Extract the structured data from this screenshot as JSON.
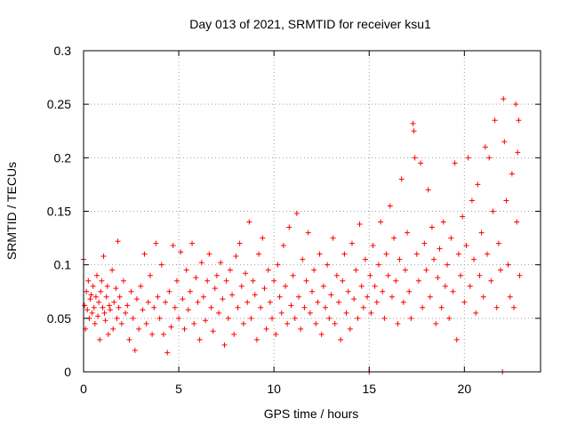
{
  "chart_data": {
    "type": "scatter",
    "title": "Day 013 of 2021, SRMTID for receiver ksu1",
    "xlabel": "GPS time / hours",
    "ylabel": "SRMTID / TECUs",
    "xlim": [
      0,
      24
    ],
    "ylim": [
      0,
      0.3
    ],
    "xticks": [
      0,
      5,
      10,
      15,
      20
    ],
    "xtick_labels": [
      "0",
      "5",
      "10",
      "15",
      "20"
    ],
    "yticks": [
      0,
      0.05,
      0.1,
      0.15,
      0.2,
      0.25,
      0.3
    ],
    "ytick_labels": [
      "0",
      "0.05",
      "0.1",
      "0.15",
      "0.2",
      "0.25",
      "0.3"
    ],
    "grid": true,
    "marker": "plus",
    "color": "#ff0000",
    "series": [
      {
        "name": "SRMTID",
        "points": [
          [
            0.0,
            0.105
          ],
          [
            0.05,
            0.062
          ],
          [
            0.1,
            0.04
          ],
          [
            0.15,
            0.075
          ],
          [
            0.2,
            0.058
          ],
          [
            0.25,
            0.085
          ],
          [
            0.3,
            0.05
          ],
          [
            0.35,
            0.068
          ],
          [
            0.4,
            0.072
          ],
          [
            0.45,
            0.055
          ],
          [
            0.5,
            0.08
          ],
          [
            0.55,
            0.06
          ],
          [
            0.6,
            0.045
          ],
          [
            0.65,
            0.07
          ],
          [
            0.7,
            0.09
          ],
          [
            0.75,
            0.052
          ],
          [
            0.8,
            0.065
          ],
          [
            0.85,
            0.03
          ],
          [
            0.9,
            0.075
          ],
          [
            0.95,
            0.085
          ],
          [
            1.0,
            0.06
          ],
          [
            1.05,
            0.108
          ],
          [
            1.1,
            0.055
          ],
          [
            1.15,
            0.048
          ],
          [
            1.2,
            0.07
          ],
          [
            1.25,
            0.08
          ],
          [
            1.3,
            0.035
          ],
          [
            1.35,
            0.062
          ],
          [
            1.4,
            0.058
          ],
          [
            1.5,
            0.095
          ],
          [
            1.55,
            0.04
          ],
          [
            1.6,
            0.065
          ],
          [
            1.7,
            0.078
          ],
          [
            1.75,
            0.05
          ],
          [
            1.8,
            0.122
          ],
          [
            1.85,
            0.06
          ],
          [
            1.9,
            0.07
          ],
          [
            2.0,
            0.045
          ],
          [
            2.1,
            0.085
          ],
          [
            2.2,
            0.055
          ],
          [
            2.3,
            0.062
          ],
          [
            2.4,
            0.03
          ],
          [
            2.5,
            0.075
          ],
          [
            2.6,
            0.05
          ],
          [
            2.7,
            0.02
          ],
          [
            2.8,
            0.068
          ],
          [
            2.9,
            0.04
          ],
          [
            3.0,
            0.08
          ],
          [
            3.1,
            0.058
          ],
          [
            3.2,
            0.11
          ],
          [
            3.3,
            0.045
          ],
          [
            3.4,
            0.065
          ],
          [
            3.5,
            0.09
          ],
          [
            3.6,
            0.035
          ],
          [
            3.7,
            0.06
          ],
          [
            3.8,
            0.12
          ],
          [
            3.9,
            0.07
          ],
          [
            4.0,
            0.05
          ],
          [
            4.1,
            0.1
          ],
          [
            4.2,
            0.035
          ],
          [
            4.3,
            0.065
          ],
          [
            4.4,
            0.018
          ],
          [
            4.5,
            0.075
          ],
          [
            4.6,
            0.042
          ],
          [
            4.7,
            0.118
          ],
          [
            4.8,
            0.06
          ],
          [
            4.9,
            0.085
          ],
          [
            5.0,
            0.05
          ],
          [
            5.1,
            0.112
          ],
          [
            5.2,
            0.068
          ],
          [
            5.3,
            0.04
          ],
          [
            5.4,
            0.095
          ],
          [
            5.5,
            0.058
          ],
          [
            5.6,
            0.075
          ],
          [
            5.7,
            0.12
          ],
          [
            5.8,
            0.045
          ],
          [
            5.9,
            0.088
          ],
          [
            6.0,
            0.065
          ],
          [
            6.1,
            0.03
          ],
          [
            6.2,
            0.102
          ],
          [
            6.3,
            0.07
          ],
          [
            6.4,
            0.048
          ],
          [
            6.5,
            0.085
          ],
          [
            6.6,
            0.11
          ],
          [
            6.7,
            0.06
          ],
          [
            6.8,
            0.038
          ],
          [
            6.9,
            0.078
          ],
          [
            7.0,
            0.09
          ],
          [
            7.1,
            0.055
          ],
          [
            7.2,
            0.102
          ],
          [
            7.3,
            0.068
          ],
          [
            7.4,
            0.025
          ],
          [
            7.5,
            0.085
          ],
          [
            7.6,
            0.05
          ],
          [
            7.7,
            0.095
          ],
          [
            7.8,
            0.072
          ],
          [
            7.9,
            0.035
          ],
          [
            8.0,
            0.108
          ],
          [
            8.1,
            0.06
          ],
          [
            8.2,
            0.12
          ],
          [
            8.3,
            0.08
          ],
          [
            8.4,
            0.045
          ],
          [
            8.5,
            0.092
          ],
          [
            8.6,
            0.065
          ],
          [
            8.7,
            0.14
          ],
          [
            8.8,
            0.05
          ],
          [
            8.9,
            0.085
          ],
          [
            9.0,
            0.072
          ],
          [
            9.1,
            0.03
          ],
          [
            9.2,
            0.11
          ],
          [
            9.3,
            0.06
          ],
          [
            9.4,
            0.125
          ],
          [
            9.5,
            0.078
          ],
          [
            9.6,
            0.04
          ],
          [
            9.7,
            0.095
          ],
          [
            9.8,
            0.065
          ],
          [
            9.9,
            0.05
          ],
          [
            10.0,
            0.085
          ],
          [
            10.1,
            0.035
          ],
          [
            10.2,
            0.1
          ],
          [
            10.3,
            0.07
          ],
          [
            10.4,
            0.055
          ],
          [
            10.5,
            0.118
          ],
          [
            10.6,
            0.08
          ],
          [
            10.7,
            0.045
          ],
          [
            10.8,
            0.135
          ],
          [
            10.9,
            0.062
          ],
          [
            11.0,
            0.09
          ],
          [
            11.1,
            0.05
          ],
          [
            11.2,
            0.148
          ],
          [
            11.3,
            0.07
          ],
          [
            11.4,
            0.04
          ],
          [
            11.5,
            0.105
          ],
          [
            11.6,
            0.06
          ],
          [
            11.7,
            0.085
          ],
          [
            11.8,
            0.13
          ],
          [
            11.9,
            0.055
          ],
          [
            12.0,
            0.075
          ],
          [
            12.1,
            0.095
          ],
          [
            12.2,
            0.045
          ],
          [
            12.3,
            0.065
          ],
          [
            12.4,
            0.11
          ],
          [
            12.5,
            0.035
          ],
          [
            12.6,
            0.08
          ],
          [
            12.7,
            0.06
          ],
          [
            12.8,
            0.1
          ],
          [
            12.9,
            0.05
          ],
          [
            13.0,
            0.072
          ],
          [
            13.1,
            0.125
          ],
          [
            13.2,
            0.045
          ],
          [
            13.3,
            0.09
          ],
          [
            13.4,
            0.065
          ],
          [
            13.5,
            0.03
          ],
          [
            13.6,
            0.085
          ],
          [
            13.7,
            0.11
          ],
          [
            13.8,
            0.055
          ],
          [
            13.9,
            0.075
          ],
          [
            14.0,
            0.04
          ],
          [
            14.1,
            0.12
          ],
          [
            14.2,
            0.068
          ],
          [
            14.3,
            0.095
          ],
          [
            14.4,
            0.05
          ],
          [
            14.5,
            0.138
          ],
          [
            14.6,
            0.08
          ],
          [
            14.7,
            0.06
          ],
          [
            14.8,
            0.105
          ],
          [
            14.9,
            0.07
          ],
          [
            15.0,
            0.0
          ],
          [
            15.05,
            0.09
          ],
          [
            15.1,
            0.055
          ],
          [
            15.2,
            0.118
          ],
          [
            15.3,
            0.08
          ],
          [
            15.4,
            0.065
          ],
          [
            15.5,
            0.1
          ],
          [
            15.6,
            0.14
          ],
          [
            15.7,
            0.075
          ],
          [
            15.8,
            0.05
          ],
          [
            15.9,
            0.11
          ],
          [
            16.0,
            0.09
          ],
          [
            16.1,
            0.155
          ],
          [
            16.2,
            0.07
          ],
          [
            16.3,
            0.125
          ],
          [
            16.4,
            0.085
          ],
          [
            16.5,
            0.045
          ],
          [
            16.6,
            0.105
          ],
          [
            16.7,
            0.18
          ],
          [
            16.8,
            0.065
          ],
          [
            16.9,
            0.095
          ],
          [
            17.0,
            0.13
          ],
          [
            17.1,
            0.075
          ],
          [
            17.2,
            0.05
          ],
          [
            17.3,
            0.232
          ],
          [
            17.35,
            0.225
          ],
          [
            17.4,
            0.2
          ],
          [
            17.5,
            0.11
          ],
          [
            17.6,
            0.085
          ],
          [
            17.7,
            0.195
          ],
          [
            17.8,
            0.06
          ],
          [
            17.9,
            0.12
          ],
          [
            18.0,
            0.095
          ],
          [
            18.1,
            0.17
          ],
          [
            18.2,
            0.07
          ],
          [
            18.3,
            0.135
          ],
          [
            18.4,
            0.105
          ],
          [
            18.5,
            0.045
          ],
          [
            18.6,
            0.088
          ],
          [
            18.7,
            0.115
          ],
          [
            18.8,
            0.06
          ],
          [
            18.9,
            0.14
          ],
          [
            19.0,
            0.08
          ],
          [
            19.1,
            0.1
          ],
          [
            19.2,
            0.05
          ],
          [
            19.3,
            0.125
          ],
          [
            19.4,
            0.075
          ],
          [
            19.5,
            0.195
          ],
          [
            19.6,
            0.03
          ],
          [
            19.7,
            0.11
          ],
          [
            19.8,
            0.09
          ],
          [
            19.9,
            0.145
          ],
          [
            20.0,
            0.065
          ],
          [
            20.1,
            0.118
          ],
          [
            20.2,
            0.2
          ],
          [
            20.3,
            0.08
          ],
          [
            20.4,
            0.16
          ],
          [
            20.5,
            0.105
          ],
          [
            20.6,
            0.055
          ],
          [
            20.7,
            0.175
          ],
          [
            20.8,
            0.09
          ],
          [
            20.9,
            0.13
          ],
          [
            21.0,
            0.07
          ],
          [
            21.1,
            0.21
          ],
          [
            21.2,
            0.11
          ],
          [
            21.3,
            0.2
          ],
          [
            21.4,
            0.085
          ],
          [
            21.5,
            0.15
          ],
          [
            21.6,
            0.235
          ],
          [
            21.7,
            0.06
          ],
          [
            21.8,
            0.12
          ],
          [
            21.9,
            0.095
          ],
          [
            22.0,
            0.0
          ],
          [
            22.05,
            0.255
          ],
          [
            22.1,
            0.215
          ],
          [
            22.2,
            0.16
          ],
          [
            22.3,
            0.1
          ],
          [
            22.4,
            0.07
          ],
          [
            22.5,
            0.185
          ],
          [
            22.6,
            0.06
          ],
          [
            22.7,
            0.25
          ],
          [
            22.75,
            0.14
          ],
          [
            22.8,
            0.205
          ],
          [
            22.85,
            0.235
          ],
          [
            22.9,
            0.09
          ]
        ]
      }
    ]
  }
}
